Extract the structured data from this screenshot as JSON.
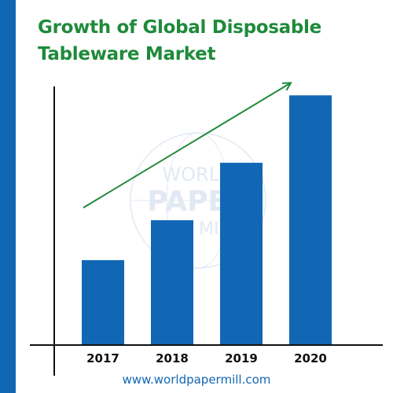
{
  "colors": {
    "bar": "#1267b4",
    "accent_stripe": "#1267b4",
    "title": "#1f8a3a",
    "trend_arrow": "#1f8a3a",
    "axis": "#111111",
    "website": "#1267b4",
    "watermark": "#c9d8ea"
  },
  "watermark": {
    "lines": [
      "WORLD",
      "PAPER",
      "MILL"
    ],
    "icon": "globe-watermark-icon"
  },
  "footer": {
    "website": "www.worldpapermill.com"
  },
  "chart_data": {
    "type": "bar",
    "title_lines": [
      "Growth of Global Disposable",
      "Tableware Market"
    ],
    "categories": [
      "2017",
      "2018",
      "2019",
      "2020"
    ],
    "values": [
      34,
      50,
      73,
      100
    ],
    "ylim": [
      0,
      113
    ],
    "xlabel": "",
    "ylabel": "",
    "grid": false,
    "legend": "none",
    "show_y_ticks": false,
    "trend_arrow": {
      "from": [
        2017,
        55
      ],
      "to": [
        2020,
        105
      ],
      "direction": "up"
    }
  }
}
